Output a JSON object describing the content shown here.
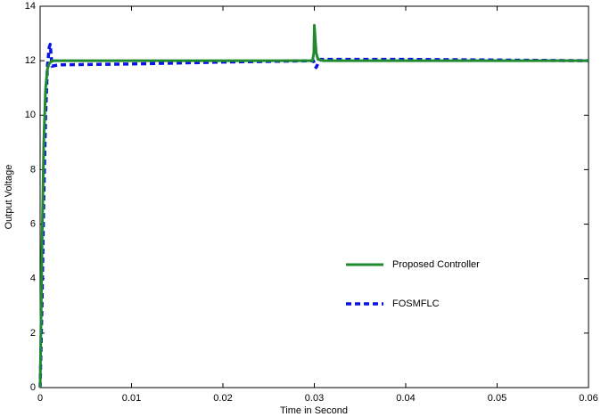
{
  "chart_data": {
    "type": "line",
    "xlabel": "Time in Second",
    "ylabel": "Output Voltage",
    "xlim": [
      0,
      0.06
    ],
    "ylim": [
      0,
      14
    ],
    "xticks": [
      0,
      0.01,
      0.02,
      0.03,
      0.04,
      0.05,
      0.06
    ],
    "yticks": [
      0,
      2,
      4,
      6,
      8,
      10,
      12,
      14
    ],
    "grid": false,
    "legend": "inside-right",
    "series": [
      {
        "name": "Proposed Controller",
        "color": "#1f8a2e",
        "style": "solid",
        "x": [
          0,
          0.0002,
          0.0004,
          0.0006,
          0.0008,
          0.001,
          0.0013,
          0.002,
          0.01,
          0.0298,
          0.02995,
          0.03,
          0.0301,
          0.0302,
          0.0304,
          0.031,
          0.04,
          0.06
        ],
        "values": [
          0,
          5,
          9,
          11,
          11.7,
          11.9,
          12,
          12,
          12,
          12,
          12.3,
          13.3,
          12.8,
          12.3,
          12.05,
          12,
          12,
          12
        ]
      },
      {
        "name": "FOSMFLC",
        "color": "#0a14e6",
        "style": "dashed",
        "x": [
          0,
          0.0002,
          0.0004,
          0.0006,
          0.0008,
          0.001,
          0.0011,
          0.0012,
          0.0013,
          0.002,
          0.01,
          0.02,
          0.0299,
          0.0301,
          0.0302,
          0.0304,
          0.0307,
          0.031,
          0.04,
          0.06
        ],
        "values": [
          0,
          3,
          7,
          10,
          11.8,
          12.5,
          12.6,
          12.2,
          11.8,
          11.85,
          11.88,
          11.95,
          12,
          11.8,
          11.75,
          11.9,
          12.05,
          12.05,
          12.05,
          12
        ]
      }
    ]
  }
}
